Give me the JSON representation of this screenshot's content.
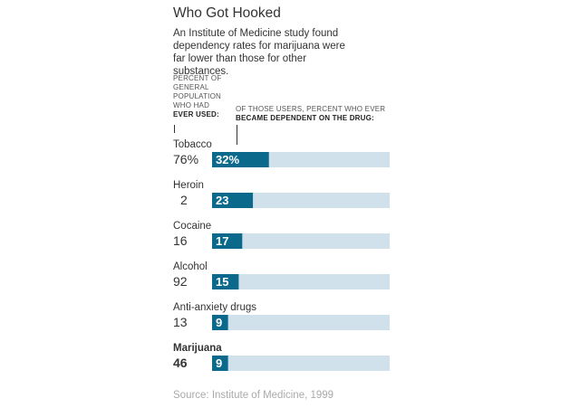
{
  "title": "Who Got Hooked",
  "subtitle": "An Institute of Medicine study found dependency rates for marijuana were far lower than those for other substances.",
  "headers": {
    "left_line": "PERCENT OF GENERAL POPULATION WHO HAD",
    "left_bold": "EVER USED:",
    "right_line": "OF THOSE USERS, PERCENT WHO EVER",
    "right_bold": "BECAME DEPENDENT ON THE DRUG:"
  },
  "source": "Source: Institute of Medicine, 1999",
  "colors": {
    "bar": "#0b6a8b",
    "track": "#d1e1ec",
    "text": "#333333",
    "label_on_bar": "#ffffff"
  },
  "chart_data": {
    "type": "bar",
    "title": "Who Got Hooked",
    "xlabel": "",
    "ylabel": "",
    "xlim": [
      0,
      100
    ],
    "categories": [
      "Tobacco",
      "Heroin",
      "Cocaine",
      "Alcohol",
      "Anti-anxiety drugs",
      "Marijuana"
    ],
    "series": [
      {
        "name": "PERCENT OF GENERAL POPULATION WHO HAD EVER USED",
        "values": [
          76,
          2,
          16,
          92,
          13,
          46
        ]
      },
      {
        "name": "OF THOSE USERS, PERCENT WHO EVER BECAME DEPENDENT ON THE DRUG",
        "values": [
          32,
          23,
          17,
          15,
          9,
          9
        ]
      }
    ],
    "ever_used_labels": [
      "76%",
      "2",
      "16",
      "92",
      "13",
      "46"
    ],
    "dependent_labels": [
      "32%",
      "23",
      "17",
      "15",
      "9",
      "9"
    ],
    "highlighted": "Marijuana"
  }
}
